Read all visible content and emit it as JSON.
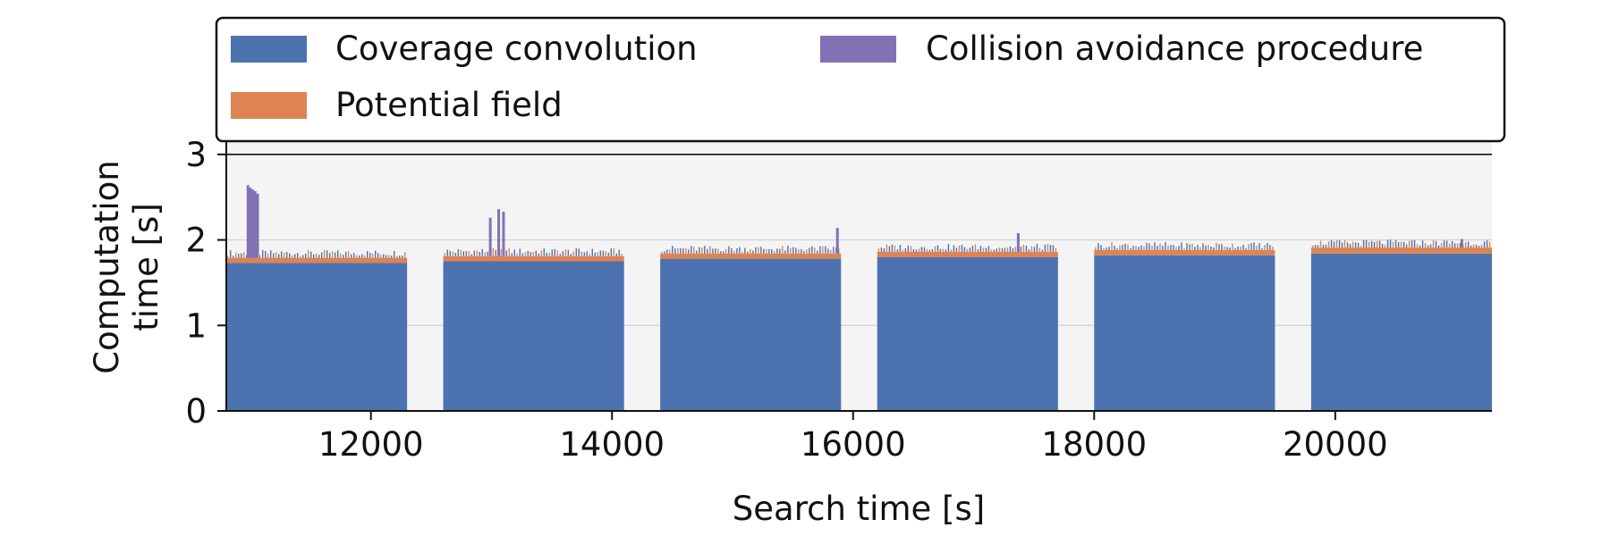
{
  "chart_data": {
    "type": "bar",
    "title": "",
    "xlabel": "Search time [s]",
    "ylabel": [
      "Computation",
      "time [s]"
    ],
    "xlim": [
      10800,
      21300
    ],
    "ylim": [
      0,
      3.5
    ],
    "xticks": [
      12000,
      14000,
      16000,
      18000,
      20000
    ],
    "yticks": [
      0,
      1,
      2,
      3
    ],
    "grid": "horizontal",
    "stacked": true,
    "legend": {
      "placement": "top",
      "columns": 2
    },
    "series": [
      {
        "name": "Coverage convolution",
        "color": "#4c72b0"
      },
      {
        "name": "Potential field",
        "color": "#dd8452"
      },
      {
        "name": "Collision avoidance procedure",
        "color": "#8172b3"
      }
    ],
    "segments": [
      {
        "x_start": 10800,
        "x_end": 12300,
        "coverage_convolution": 1.73,
        "potential_field": 0.06,
        "collision_avoidance": 0.0
      },
      {
        "x_start": 12600,
        "x_end": 14100,
        "coverage_convolution": 1.75,
        "potential_field": 0.06,
        "collision_avoidance": 0.0
      },
      {
        "x_start": 14400,
        "x_end": 15900,
        "coverage_convolution": 1.78,
        "potential_field": 0.06,
        "collision_avoidance": 0.0
      },
      {
        "x_start": 16200,
        "x_end": 17700,
        "coverage_convolution": 1.8,
        "potential_field": 0.06,
        "collision_avoidance": 0.0
      },
      {
        "x_start": 18000,
        "x_end": 19500,
        "coverage_convolution": 1.82,
        "potential_field": 0.06,
        "collision_avoidance": 0.0
      },
      {
        "x_start": 19800,
        "x_end": 21300,
        "coverage_convolution": 1.84,
        "potential_field": 0.07,
        "collision_avoidance": 0.0
      }
    ],
    "spikes": [
      {
        "x": 10980,
        "collision_avoidance": 0.85
      },
      {
        "x": 11000,
        "collision_avoidance": 0.82
      },
      {
        "x": 11020,
        "collision_avoidance": 0.8
      },
      {
        "x": 11040,
        "collision_avoidance": 0.78
      },
      {
        "x": 11060,
        "collision_avoidance": 0.75
      },
      {
        "x": 12990,
        "collision_avoidance": 0.45
      },
      {
        "x": 13060,
        "collision_avoidance": 0.55
      },
      {
        "x": 13100,
        "collision_avoidance": 0.52
      },
      {
        "x": 15870,
        "collision_avoidance": 0.3
      },
      {
        "x": 17370,
        "collision_avoidance": 0.22
      },
      {
        "x": 21050,
        "collision_avoidance": 0.1
      }
    ]
  }
}
